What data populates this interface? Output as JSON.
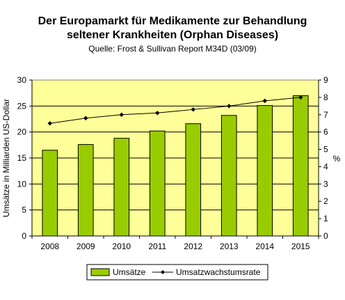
{
  "chart_data": {
    "type": "bar",
    "title_line1": "Der  Europamarkt für Medikamente zur Behandlung",
    "title_line2": "seltener Krankheiten (Orphan Diseases)",
    "subtitle": "Quelle: Frost & Sullivan Report M34D (03/09)",
    "ylabel": "Umsätze in Milliarden US-Dollar",
    "y2label": "%",
    "categories": [
      "2008",
      "2009",
      "2010",
      "2011",
      "2012",
      "2013",
      "2014",
      "2015"
    ],
    "ylim": [
      0,
      30
    ],
    "yticks": [
      0,
      5,
      10,
      15,
      20,
      25,
      30
    ],
    "y2lim": [
      0,
      9
    ],
    "y2ticks": [
      0,
      1,
      2,
      3,
      4,
      5,
      6,
      7,
      8,
      9
    ],
    "legend_position": "bottom",
    "plot_background": "#ffff99",
    "series": [
      {
        "name": "Umsätze",
        "type": "bar",
        "axis": "left",
        "color": "#99cc00",
        "values": [
          16.5,
          17.6,
          18.8,
          20.2,
          21.6,
          23.2,
          25.1,
          27.0
        ]
      },
      {
        "name": "Umsatzwachstumsrate",
        "type": "line",
        "axis": "right",
        "color": "#000000",
        "values": [
          6.5,
          6.8,
          7.0,
          7.1,
          7.3,
          7.5,
          7.8,
          8.0
        ]
      }
    ]
  }
}
